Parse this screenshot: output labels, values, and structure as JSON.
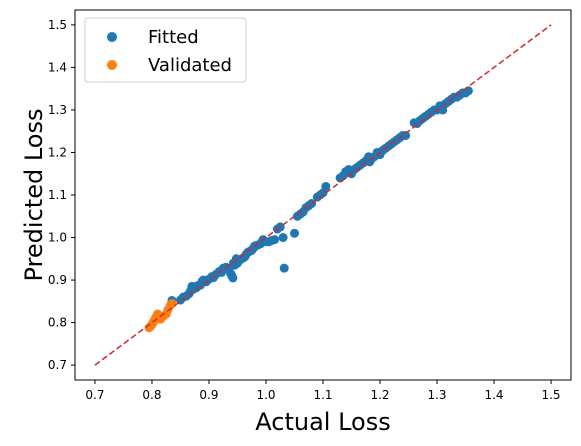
{
  "chart_data": {
    "type": "scatter",
    "xlabel": "Actual Loss",
    "ylabel": "Predicted Loss",
    "xlim": [
      0.665,
      1.535
    ],
    "ylim": [
      0.665,
      1.535
    ],
    "xticks": [
      0.7,
      0.8,
      0.9,
      1.0,
      1.1,
      1.2,
      1.3,
      1.4,
      1.5
    ],
    "yticks": [
      0.7,
      0.8,
      0.9,
      1.0,
      1.1,
      1.2,
      1.3,
      1.4,
      1.5
    ],
    "xtick_labels": [
      "0.7",
      "0.8",
      "0.9",
      "1.0",
      "1.1",
      "1.2",
      "1.3",
      "1.4",
      "1.5"
    ],
    "ytick_labels": [
      "0.7",
      "0.8",
      "0.9",
      "1.0",
      "1.1",
      "1.2",
      "1.3",
      "1.4",
      "1.5"
    ],
    "grid": false,
    "legend_position": "upper-left",
    "reference_line": {
      "x": [
        0.7,
        1.5
      ],
      "y": [
        0.7,
        1.5
      ],
      "color": "#d62728",
      "style": "dashed"
    },
    "series": [
      {
        "name": "Fitted",
        "color": "#1f77b4",
        "points": [
          [
            0.835,
            0.852
          ],
          [
            0.85,
            0.853
          ],
          [
            0.855,
            0.86
          ],
          [
            0.86,
            0.862
          ],
          [
            0.865,
            0.868
          ],
          [
            0.868,
            0.875
          ],
          [
            0.87,
            0.885
          ],
          [
            0.872,
            0.878
          ],
          [
            0.878,
            0.882
          ],
          [
            0.88,
            0.887
          ],
          [
            0.885,
            0.888
          ],
          [
            0.888,
            0.897
          ],
          [
            0.89,
            0.9
          ],
          [
            0.895,
            0.896
          ],
          [
            0.9,
            0.902
          ],
          [
            0.905,
            0.908
          ],
          [
            0.908,
            0.906
          ],
          [
            0.912,
            0.913
          ],
          [
            0.918,
            0.92
          ],
          [
            0.922,
            0.918
          ],
          [
            0.925,
            0.928
          ],
          [
            0.93,
            0.93
          ],
          [
            0.935,
            0.925
          ],
          [
            0.938,
            0.915
          ],
          [
            0.94,
            0.91
          ],
          [
            0.942,
            0.905
          ],
          [
            0.943,
            0.94
          ],
          [
            0.945,
            0.935
          ],
          [
            0.948,
            0.95
          ],
          [
            0.95,
            0.94
          ],
          [
            0.952,
            0.945
          ],
          [
            0.955,
            0.948
          ],
          [
            0.96,
            0.952
          ],
          [
            0.963,
            0.955
          ],
          [
            0.965,
            0.96
          ],
          [
            0.968,
            0.965
          ],
          [
            0.972,
            0.968
          ],
          [
            0.975,
            0.97
          ],
          [
            0.978,
            0.975
          ],
          [
            0.98,
            0.98
          ],
          [
            0.985,
            0.982
          ],
          [
            0.99,
            0.985
          ],
          [
            0.993,
            0.99
          ],
          [
            0.995,
            0.995
          ],
          [
            1.0,
            0.99
          ],
          [
            1.005,
            0.99
          ],
          [
            1.01,
            0.993
          ],
          [
            1.015,
            0.995
          ],
          [
            1.02,
            1.02
          ],
          [
            1.025,
            1.025
          ],
          [
            1.03,
            1.0
          ],
          [
            1.032,
            0.928
          ],
          [
            1.05,
            1.01
          ],
          [
            1.055,
            1.05
          ],
          [
            1.06,
            1.055
          ],
          [
            1.065,
            1.06
          ],
          [
            1.07,
            1.07
          ],
          [
            1.075,
            1.075
          ],
          [
            1.08,
            1.08
          ],
          [
            1.09,
            1.095
          ],
          [
            1.095,
            1.1
          ],
          [
            1.1,
            1.105
          ],
          [
            1.105,
            1.12
          ],
          [
            1.13,
            1.14
          ],
          [
            1.135,
            1.145
          ],
          [
            1.14,
            1.155
          ],
          [
            1.145,
            1.16
          ],
          [
            1.15,
            1.15
          ],
          [
            1.155,
            1.16
          ],
          [
            1.16,
            1.165
          ],
          [
            1.165,
            1.17
          ],
          [
            1.17,
            1.175
          ],
          [
            1.175,
            1.18
          ],
          [
            1.18,
            1.19
          ],
          [
            1.182,
            1.178
          ],
          [
            1.185,
            1.185
          ],
          [
            1.19,
            1.19
          ],
          [
            1.195,
            1.2
          ],
          [
            1.2,
            1.195
          ],
          [
            1.205,
            1.205
          ],
          [
            1.21,
            1.21
          ],
          [
            1.215,
            1.215
          ],
          [
            1.22,
            1.22
          ],
          [
            1.225,
            1.225
          ],
          [
            1.23,
            1.23
          ],
          [
            1.235,
            1.235
          ],
          [
            1.24,
            1.24
          ],
          [
            1.245,
            1.24
          ],
          [
            1.26,
            1.27
          ],
          [
            1.265,
            1.268
          ],
          [
            1.27,
            1.275
          ],
          [
            1.275,
            1.28
          ],
          [
            1.28,
            1.285
          ],
          [
            1.285,
            1.29
          ],
          [
            1.29,
            1.295
          ],
          [
            1.295,
            1.3
          ],
          [
            1.3,
            1.3
          ],
          [
            1.305,
            1.31
          ],
          [
            1.31,
            1.3
          ],
          [
            1.315,
            1.315
          ],
          [
            1.32,
            1.32
          ],
          [
            1.325,
            1.325
          ],
          [
            1.33,
            1.33
          ],
          [
            1.335,
            1.33
          ],
          [
            1.34,
            1.335
          ],
          [
            1.345,
            1.34
          ],
          [
            1.35,
            1.34
          ],
          [
            1.355,
            1.345
          ]
        ]
      },
      {
        "name": "Validated",
        "color": "#ff7f0e",
        "points": [
          [
            0.795,
            0.788
          ],
          [
            0.797,
            0.79
          ],
          [
            0.8,
            0.795
          ],
          [
            0.802,
            0.8
          ],
          [
            0.804,
            0.805
          ],
          [
            0.806,
            0.81
          ],
          [
            0.808,
            0.815
          ],
          [
            0.81,
            0.82
          ],
          [
            0.815,
            0.808
          ],
          [
            0.82,
            0.815
          ],
          [
            0.825,
            0.82
          ],
          [
            0.828,
            0.83
          ],
          [
            0.832,
            0.84
          ],
          [
            0.835,
            0.845
          ]
        ]
      }
    ]
  }
}
